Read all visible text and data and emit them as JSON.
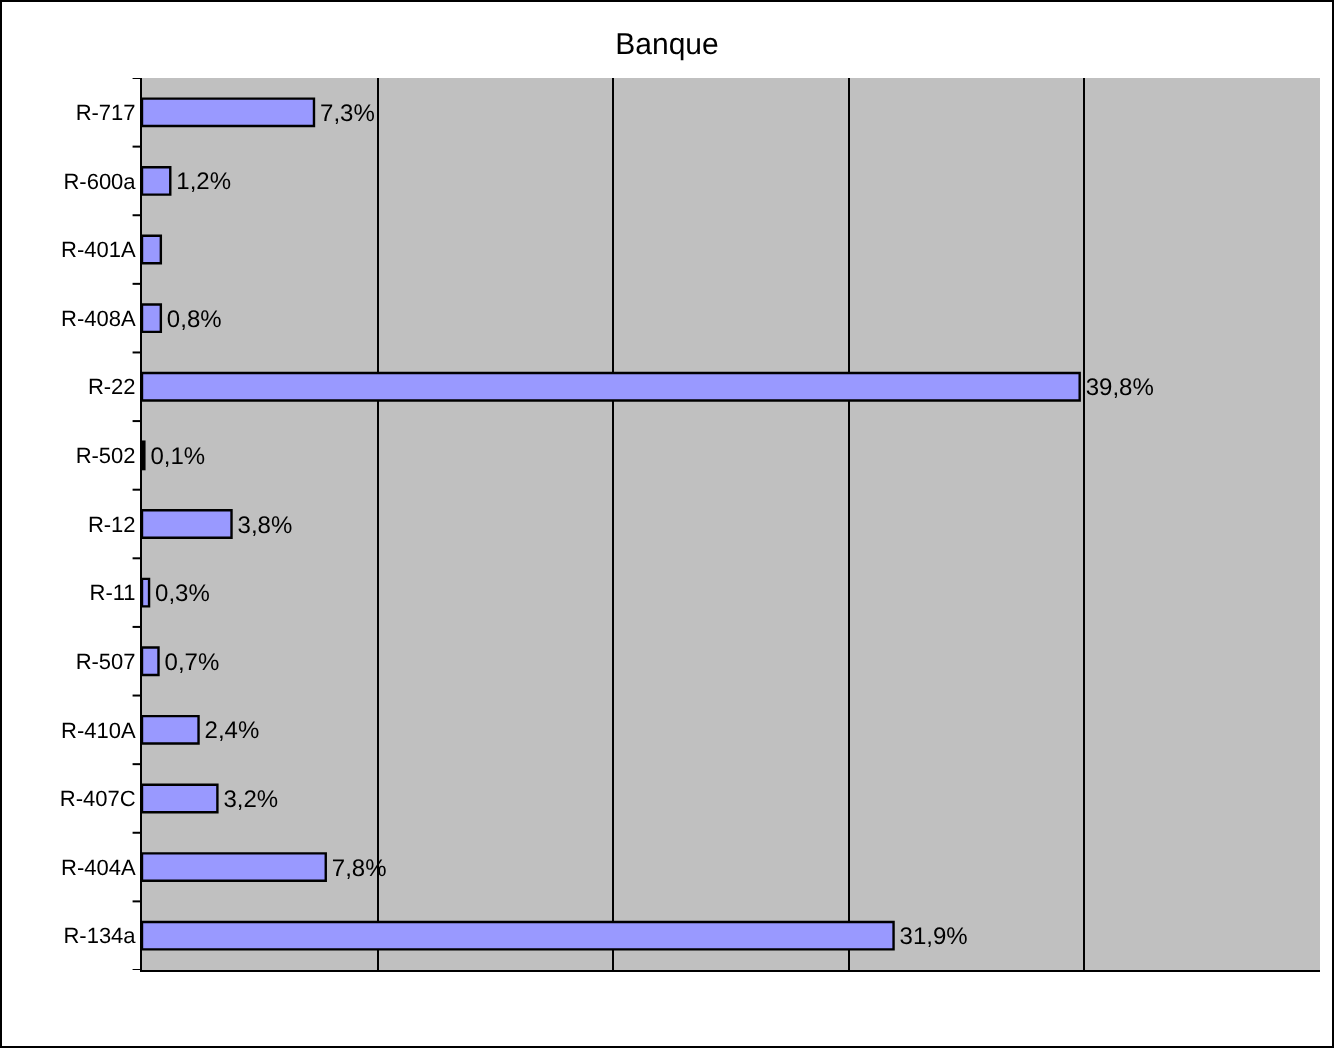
{
  "chart_data": {
    "type": "bar",
    "orientation": "horizontal",
    "title": "Banque",
    "categories": [
      "R-717",
      "R-600a",
      "R-401A",
      "R-408A",
      "R-22",
      "R-502",
      "R-12",
      "R-11",
      "R-507",
      "R-410A",
      "R-407C",
      "R-404A",
      "R-134a"
    ],
    "values": [
      7.3,
      1.2,
      0.8,
      0.8,
      39.8,
      0.1,
      3.8,
      0.3,
      0.7,
      2.4,
      3.2,
      7.8,
      31.9
    ],
    "value_labels": [
      "7,3%",
      "1,2%",
      null,
      "0,8%",
      "39,8%",
      "0,1%",
      "3,8%",
      "0,3%",
      "0,7%",
      "2,4%",
      "3,2%",
      "7,8%",
      "31,9%"
    ],
    "color": "#9999ff",
    "xlim": [
      0,
      50
    ],
    "xticks": [
      {
        "value": 0,
        "label": null
      },
      {
        "value": 10,
        "label": null
      },
      {
        "value": 20,
        "label": null
      },
      {
        "value": 30,
        "label": null
      },
      {
        "value": 40,
        "label": null
      },
      {
        "value": 50,
        "label": null
      }
    ],
    "grid": "x",
    "tick_labels": "y",
    "legend": false
  }
}
